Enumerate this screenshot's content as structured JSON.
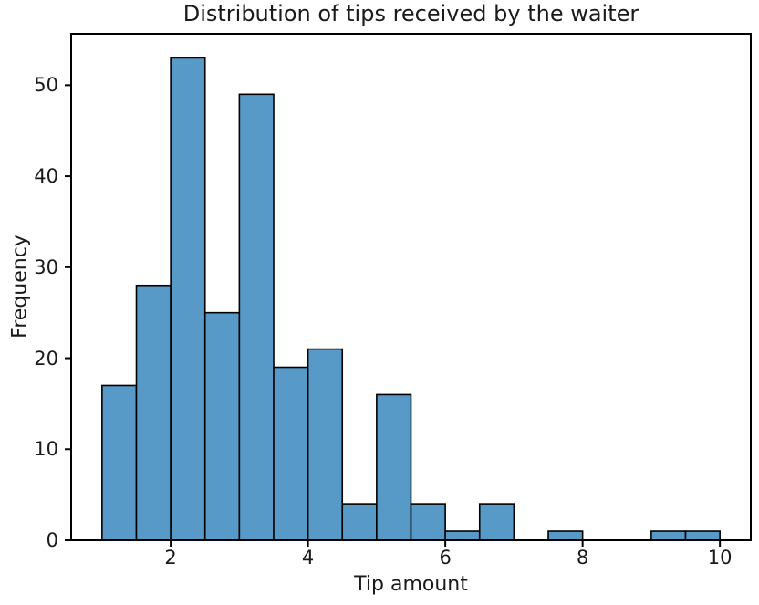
{
  "chart_data": {
    "type": "bar",
    "subtype": "histogram",
    "title": "Distribution of tips received by the waiter",
    "xlabel": "Tip amount",
    "ylabel": "Frequency",
    "bin_edges": [
      1.0,
      1.5,
      2.0,
      2.5,
      3.0,
      3.5,
      4.0,
      4.5,
      5.0,
      5.5,
      6.0,
      6.5,
      7.0,
      7.5,
      8.0,
      8.5,
      9.0,
      9.5,
      10.0
    ],
    "counts": [
      17,
      28,
      53,
      25,
      49,
      19,
      21,
      4,
      16,
      4,
      1,
      4,
      0,
      1,
      0,
      0,
      1,
      1
    ],
    "total_observations": 244,
    "x_ticks": [
      2,
      4,
      6,
      8,
      10
    ],
    "y_ticks": [
      0,
      10,
      20,
      30,
      40,
      50
    ],
    "xlim": [
      0.55,
      10.45
    ],
    "ylim": [
      0,
      55.65
    ],
    "grid": false,
    "legend": null,
    "colors": {
      "bar_fill": "#5799C7",
      "bar_edge": "#000000",
      "spine": "#000000",
      "tick": "#000000",
      "text": "#1a1a1a",
      "background": "#ffffff"
    }
  }
}
